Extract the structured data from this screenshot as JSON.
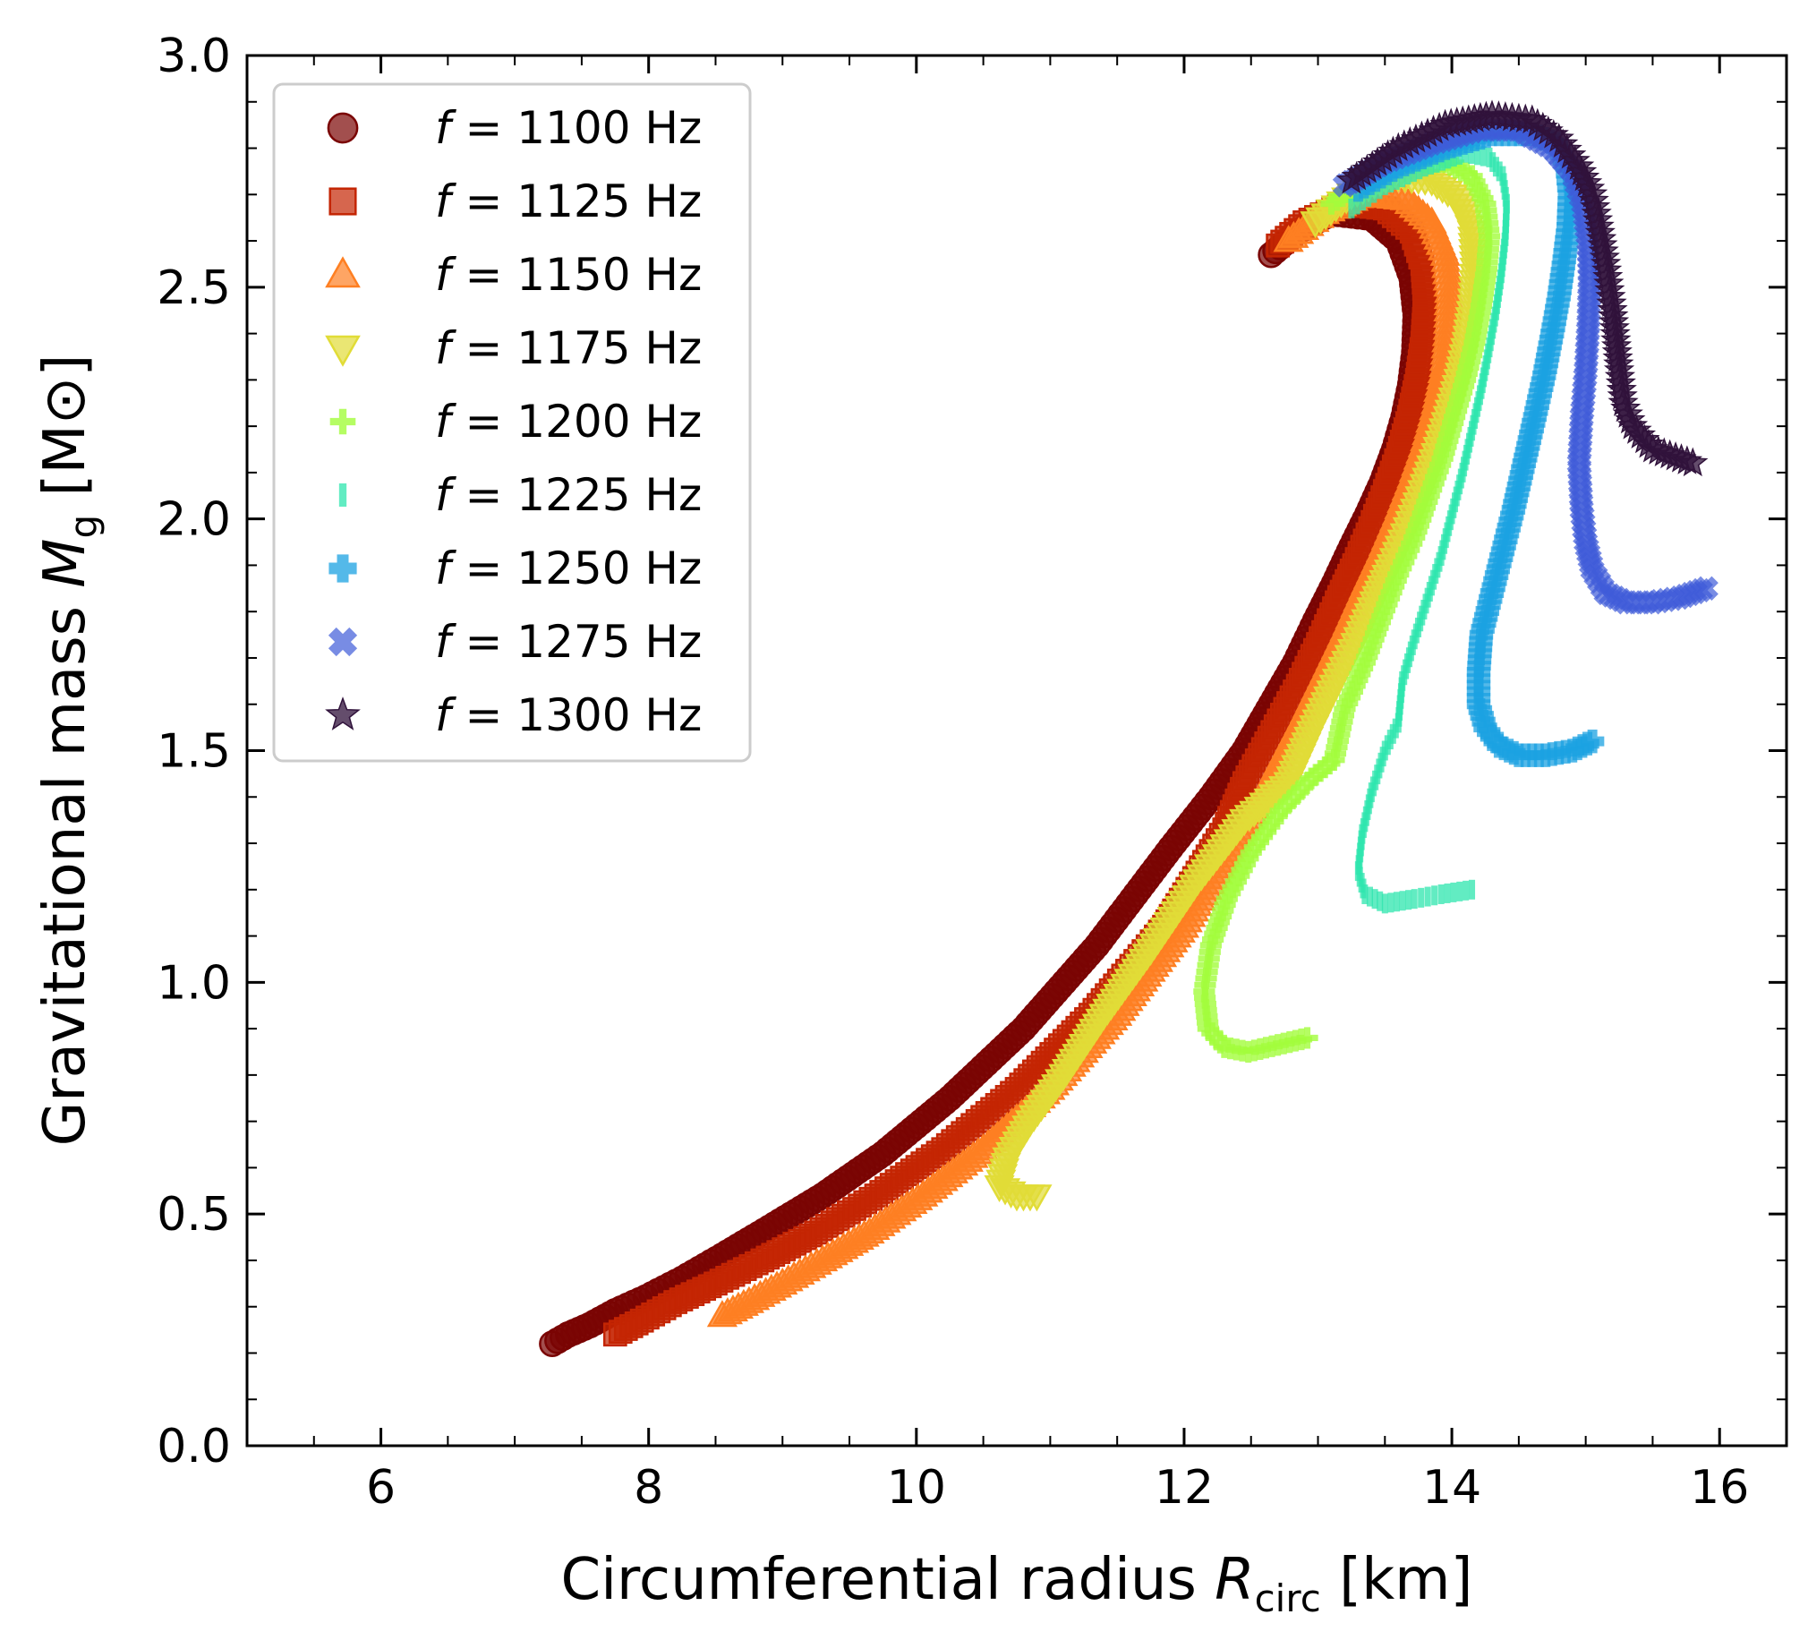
{
  "chart_data": {
    "type": "scatter",
    "title": "",
    "xlabel": {
      "prefix": "Circumferential radius ",
      "symbol": "R",
      "subscript": "circ",
      "suffix": " [km]"
    },
    "ylabel": {
      "prefix": "Gravitational mass ",
      "symbol": "M",
      "subscript": "g",
      "suffix": " [M⊙]"
    },
    "xlim": [
      5.0,
      16.5
    ],
    "ylim": [
      0.0,
      3.0
    ],
    "xticks": [
      6,
      8,
      10,
      12,
      14,
      16
    ],
    "xtick_labels": [
      "6",
      "8",
      "10",
      "12",
      "14",
      "16"
    ],
    "yticks": [
      0.0,
      0.5,
      1.0,
      1.5,
      2.0,
      2.5,
      3.0
    ],
    "ytick_labels": [
      "0.0",
      "0.5",
      "1.0",
      "1.5",
      "2.0",
      "2.5",
      "3.0"
    ],
    "grid": false,
    "legend_position": "upper-left",
    "series": [
      {
        "name": "f = 1100 Hz",
        "freq": "1100",
        "marker": "circle",
        "color": "#7a0403",
        "x": [
          7.28,
          7.4,
          7.56,
          7.75,
          7.98,
          8.25,
          8.55,
          8.9,
          9.3,
          9.75,
          10.25,
          10.8,
          11.35,
          11.9,
          12.2,
          12.45,
          12.65,
          12.83,
          12.98,
          13.12,
          13.25,
          13.37,
          13.48,
          13.57,
          13.64,
          13.69,
          13.72,
          13.73,
          13.7,
          13.6,
          13.4,
          13.1,
          12.85,
          12.65
        ],
        "y": [
          0.22,
          0.24,
          0.26,
          0.29,
          0.32,
          0.36,
          0.41,
          0.47,
          0.54,
          0.63,
          0.75,
          0.9,
          1.08,
          1.29,
          1.4,
          1.5,
          1.6,
          1.69,
          1.78,
          1.86,
          1.94,
          2.01,
          2.08,
          2.15,
          2.22,
          2.29,
          2.36,
          2.44,
          2.52,
          2.6,
          2.65,
          2.66,
          2.62,
          2.57
        ]
      },
      {
        "name": "f = 1125 Hz",
        "freq": "1125",
        "marker": "square",
        "color": "#c42503",
        "x": [
          7.75,
          7.95,
          8.2,
          8.5,
          8.85,
          9.25,
          9.7,
          10.2,
          10.75,
          11.3,
          11.85,
          12.3,
          12.45,
          12.66,
          12.85,
          13.0,
          13.14,
          13.27,
          13.39,
          13.5,
          13.6,
          13.68,
          13.74,
          13.78,
          13.8,
          13.78,
          13.7,
          13.5,
          13.2,
          12.9,
          12.7
        ],
        "y": [
          0.24,
          0.27,
          0.31,
          0.35,
          0.4,
          0.46,
          0.54,
          0.64,
          0.77,
          0.93,
          1.12,
          1.33,
          1.43,
          1.54,
          1.64,
          1.73,
          1.82,
          1.9,
          1.98,
          2.06,
          2.14,
          2.22,
          2.3,
          2.38,
          2.47,
          2.55,
          2.62,
          2.67,
          2.68,
          2.64,
          2.59
        ]
      },
      {
        "name": "f = 1150 Hz",
        "freq": "1150",
        "marker": "triangle-up",
        "color": "#fe7f22",
        "x": [
          8.55,
          8.75,
          9.0,
          9.3,
          9.65,
          10.05,
          10.5,
          11.0,
          11.5,
          12.0,
          12.45,
          12.7,
          12.88,
          13.05,
          13.2,
          13.34,
          13.47,
          13.59,
          13.7,
          13.8,
          13.88,
          13.94,
          13.97,
          13.98,
          13.95,
          13.85,
          13.65,
          13.35,
          13.05,
          12.78
        ],
        "y": [
          0.28,
          0.31,
          0.35,
          0.4,
          0.46,
          0.54,
          0.64,
          0.77,
          0.93,
          1.12,
          1.33,
          1.47,
          1.57,
          1.67,
          1.76,
          1.85,
          1.93,
          2.01,
          2.09,
          2.17,
          2.25,
          2.33,
          2.41,
          2.49,
          2.57,
          2.64,
          2.69,
          2.7,
          2.66,
          2.6
        ]
      },
      {
        "name": "f = 1175 Hz",
        "freq": "1175",
        "marker": "triangle-down",
        "color": "#e1dc37",
        "x": [
          10.9,
          10.75,
          10.62,
          10.68,
          10.85,
          11.1,
          11.4,
          11.75,
          12.1,
          12.45,
          12.78,
          12.95,
          13.12,
          13.28,
          13.42,
          13.55,
          13.67,
          13.78,
          13.88,
          13.97,
          14.05,
          14.11,
          14.15,
          14.17,
          14.15,
          14.05,
          13.85,
          13.55,
          13.25,
          12.98
        ],
        "y": [
          0.54,
          0.54,
          0.56,
          0.62,
          0.7,
          0.8,
          0.93,
          1.07,
          1.22,
          1.35,
          1.43,
          1.54,
          1.64,
          1.73,
          1.82,
          1.9,
          1.98,
          2.06,
          2.14,
          2.22,
          2.3,
          2.38,
          2.46,
          2.54,
          2.62,
          2.69,
          2.73,
          2.74,
          2.7,
          2.64
        ]
      },
      {
        "name": "f = 1200 Hz",
        "freq": "1200",
        "marker": "plus",
        "color": "#a2fc3c",
        "x": [
          12.92,
          12.48,
          12.3,
          12.18,
          12.15,
          12.2,
          12.32,
          12.5,
          12.72,
          12.95,
          13.12,
          13.2,
          13.35,
          13.48,
          13.6,
          13.72,
          13.83,
          13.93,
          14.02,
          14.1,
          14.17,
          14.22,
          14.26,
          14.28,
          14.25,
          14.15,
          13.95,
          13.65,
          13.35,
          13.1
        ],
        "y": [
          0.88,
          0.85,
          0.86,
          0.9,
          0.98,
          1.08,
          1.18,
          1.28,
          1.37,
          1.44,
          1.48,
          1.59,
          1.69,
          1.79,
          1.88,
          1.96,
          2.05,
          2.13,
          2.22,
          2.3,
          2.38,
          2.46,
          2.54,
          2.61,
          2.68,
          2.74,
          2.77,
          2.77,
          2.73,
          2.68
        ]
      },
      {
        "name": "f = 1225 Hz",
        "freq": "1225",
        "marker": "vline",
        "color": "#2ee5ae",
        "x": [
          14.15,
          13.92,
          13.72,
          13.5,
          13.35,
          13.3,
          13.33,
          13.4,
          13.5,
          13.6,
          13.63,
          13.72,
          13.82,
          13.92,
          14.0,
          14.08,
          14.15,
          14.22,
          14.28,
          14.33,
          14.37,
          14.4,
          14.41,
          14.38,
          14.28,
          14.1,
          13.8,
          13.5,
          13.25
        ],
        "y": [
          1.2,
          1.19,
          1.18,
          1.17,
          1.19,
          1.24,
          1.32,
          1.41,
          1.5,
          1.56,
          1.65,
          1.74,
          1.83,
          1.92,
          2.01,
          2.1,
          2.19,
          2.28,
          2.37,
          2.45,
          2.53,
          2.61,
          2.68,
          2.74,
          2.78,
          2.79,
          2.76,
          2.72,
          2.67
        ]
      },
      {
        "name": "f = 1250 Hz",
        "freq": "1250",
        "marker": "cross",
        "color": "#1ba1e1",
        "x": [
          15.05,
          14.9,
          14.7,
          14.5,
          14.35,
          14.25,
          14.2,
          14.2,
          14.22,
          14.3,
          14.38,
          14.46,
          14.54,
          14.62,
          14.69,
          14.75,
          14.8,
          14.84,
          14.87,
          14.88,
          14.86,
          14.78,
          14.6,
          14.3,
          13.95,
          13.6,
          13.3
        ],
        "y": [
          1.52,
          1.5,
          1.49,
          1.49,
          1.51,
          1.55,
          1.6,
          1.67,
          1.75,
          1.84,
          1.93,
          2.02,
          2.12,
          2.22,
          2.31,
          2.4,
          2.48,
          2.56,
          2.63,
          2.7,
          2.76,
          2.81,
          2.83,
          2.83,
          2.8,
          2.76,
          2.71
        ]
      },
      {
        "name": "f = 1275 Hz",
        "freq": "1275",
        "marker": "x",
        "color": "#3e5bd8",
        "x": [
          15.9,
          15.7,
          15.5,
          15.3,
          15.15,
          15.05,
          15.0,
          14.97,
          14.95,
          14.97,
          15.0,
          15.02,
          15.03,
          15.02,
          14.98,
          14.9,
          14.75,
          14.5,
          14.2,
          13.85,
          13.5,
          13.2
        ],
        "y": [
          1.85,
          1.83,
          1.82,
          1.82,
          1.84,
          1.89,
          1.95,
          2.02,
          2.12,
          2.22,
          2.32,
          2.42,
          2.52,
          2.6,
          2.68,
          2.75,
          2.8,
          2.84,
          2.84,
          2.81,
          2.77,
          2.72
        ]
      },
      {
        "name": "f = 1300 Hz",
        "freq": "1300",
        "marker": "star",
        "color": "#30123b",
        "x": [
          15.8,
          15.5,
          15.35,
          15.28,
          15.25,
          15.2,
          15.15,
          15.1,
          15.05,
          14.95,
          14.8,
          14.6,
          14.3,
          13.95,
          13.6,
          13.25
        ],
        "y": [
          2.12,
          2.15,
          2.2,
          2.25,
          2.32,
          2.45,
          2.55,
          2.63,
          2.7,
          2.76,
          2.82,
          2.86,
          2.87,
          2.85,
          2.8,
          2.73
        ]
      }
    ]
  }
}
